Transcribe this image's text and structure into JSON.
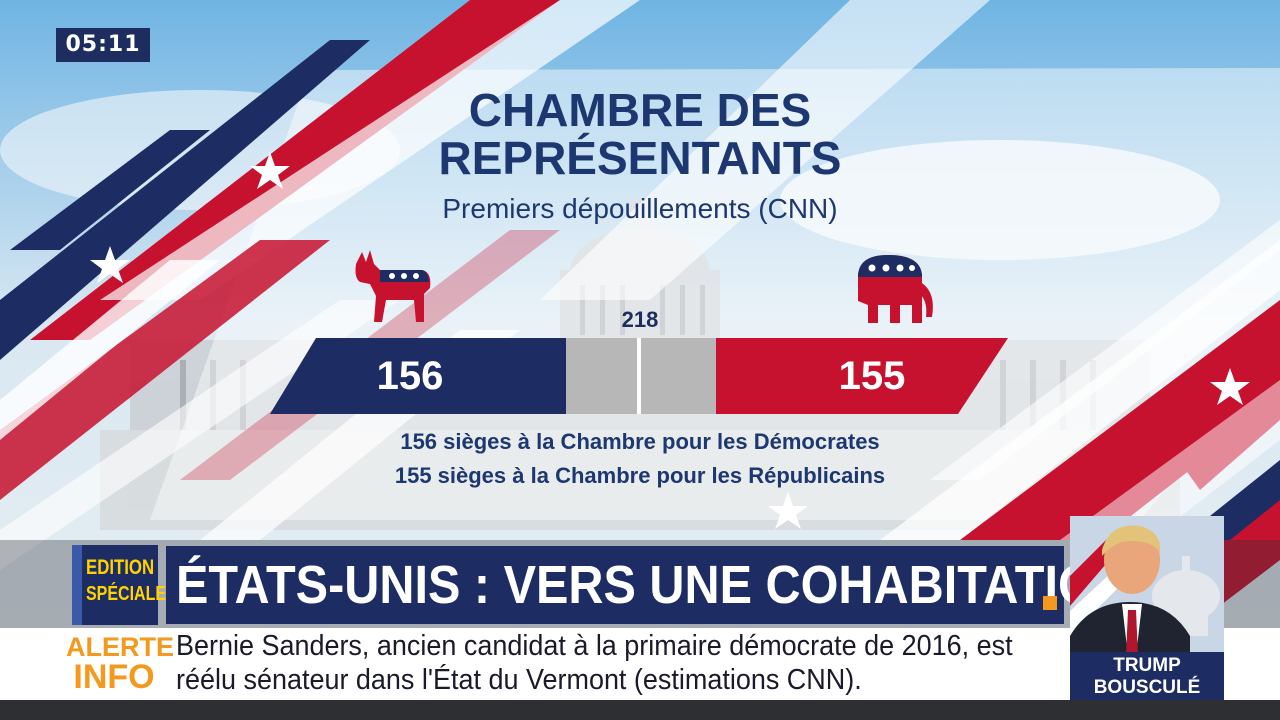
{
  "clock": "05:11",
  "title_line1": "CHAMBRE DES",
  "title_line2": "REPRÉSENTANTS",
  "subtitle": "Premiers dépouillements (CNN)",
  "democrats": {
    "seats": "156",
    "caption": "156 sièges à la Chambre pour les Démocrates",
    "symbol": "donkey-icon",
    "color": "#1d2d63"
  },
  "republicans": {
    "seats": "155",
    "caption": "155 sièges à la Chambre pour les Républicains",
    "symbol": "elephant-icon",
    "color": "#c7122f"
  },
  "majority": "218",
  "edition": {
    "line1": "EDITION",
    "line2": "SPÉCIALE"
  },
  "headline": "ÉTATS-UNIS : VERS UNE COHABITATION",
  "alert": {
    "label1": "ALERTE",
    "label2": "INFO",
    "line1": "Bernie Sanders, ancien candidat à la primaire démocrate de 2016, est",
    "line2": "réélu sénateur dans l'État du Vermont (estimations CNN)."
  },
  "side_story": {
    "line1": "TRUMP",
    "line2": "BOUSCULÉ"
  },
  "colors": {
    "navy": "#1d2d63",
    "red": "#c7122f",
    "orange": "#f39a1e",
    "gray": "#b7b7b7"
  }
}
